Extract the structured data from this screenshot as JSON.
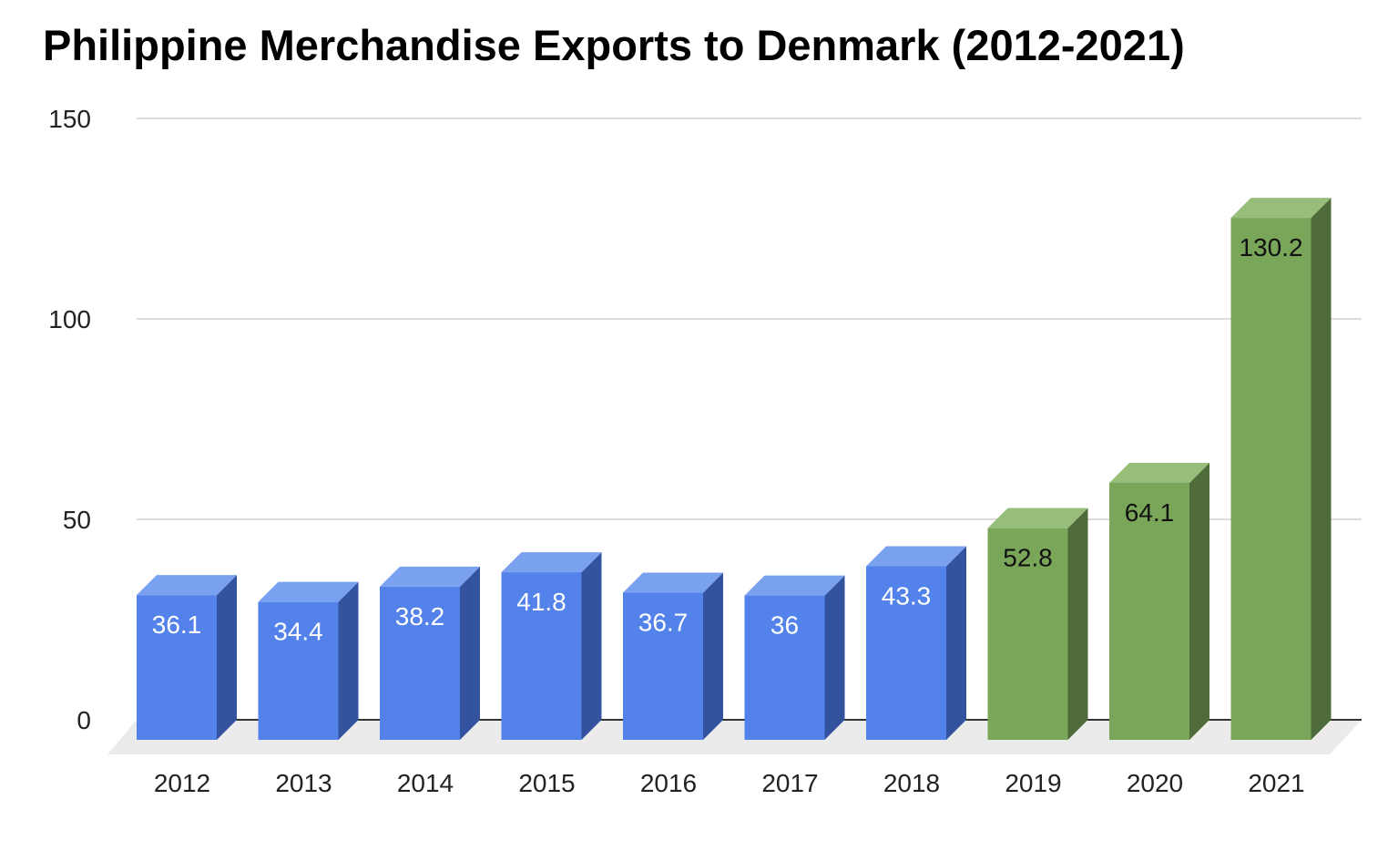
{
  "chart_data": {
    "type": "bar",
    "title": "Philippine Merchandise Exports to Denmark (2012-2021)",
    "xlabel": "",
    "ylabel": "",
    "categories": [
      "2012",
      "2013",
      "2014",
      "2015",
      "2016",
      "2017",
      "2018",
      "2019",
      "2020",
      "2021"
    ],
    "values": [
      36.1,
      34.4,
      38.2,
      41.8,
      36.7,
      36,
      43.3,
      52.8,
      64.1,
      130.2
    ],
    "value_labels": [
      "36.1",
      "34.4",
      "38.2",
      "41.8",
      "36.7",
      "36",
      "43.3",
      "52.8",
      "64.1",
      "130.2"
    ],
    "ylim": [
      0,
      150
    ],
    "yticks": [
      "0",
      "50",
      "100",
      "150"
    ],
    "grid": true,
    "style": "3d-columns",
    "colors": {
      "blue_front": "#5282ea",
      "blue_top": "#7aa0f0",
      "blue_side": "#34539f",
      "green_front": "#79a659",
      "green_top": "#96bd7a",
      "green_side": "#4f6b3a",
      "blue_label": "#ffffff",
      "green_label": "#111111",
      "grid": "#d0d0d0",
      "floor": "#ebebeb",
      "axis": "#333333"
    },
    "bar_color_groups": [
      "blue",
      "blue",
      "blue",
      "blue",
      "blue",
      "blue",
      "blue",
      "green",
      "green",
      "green"
    ]
  }
}
